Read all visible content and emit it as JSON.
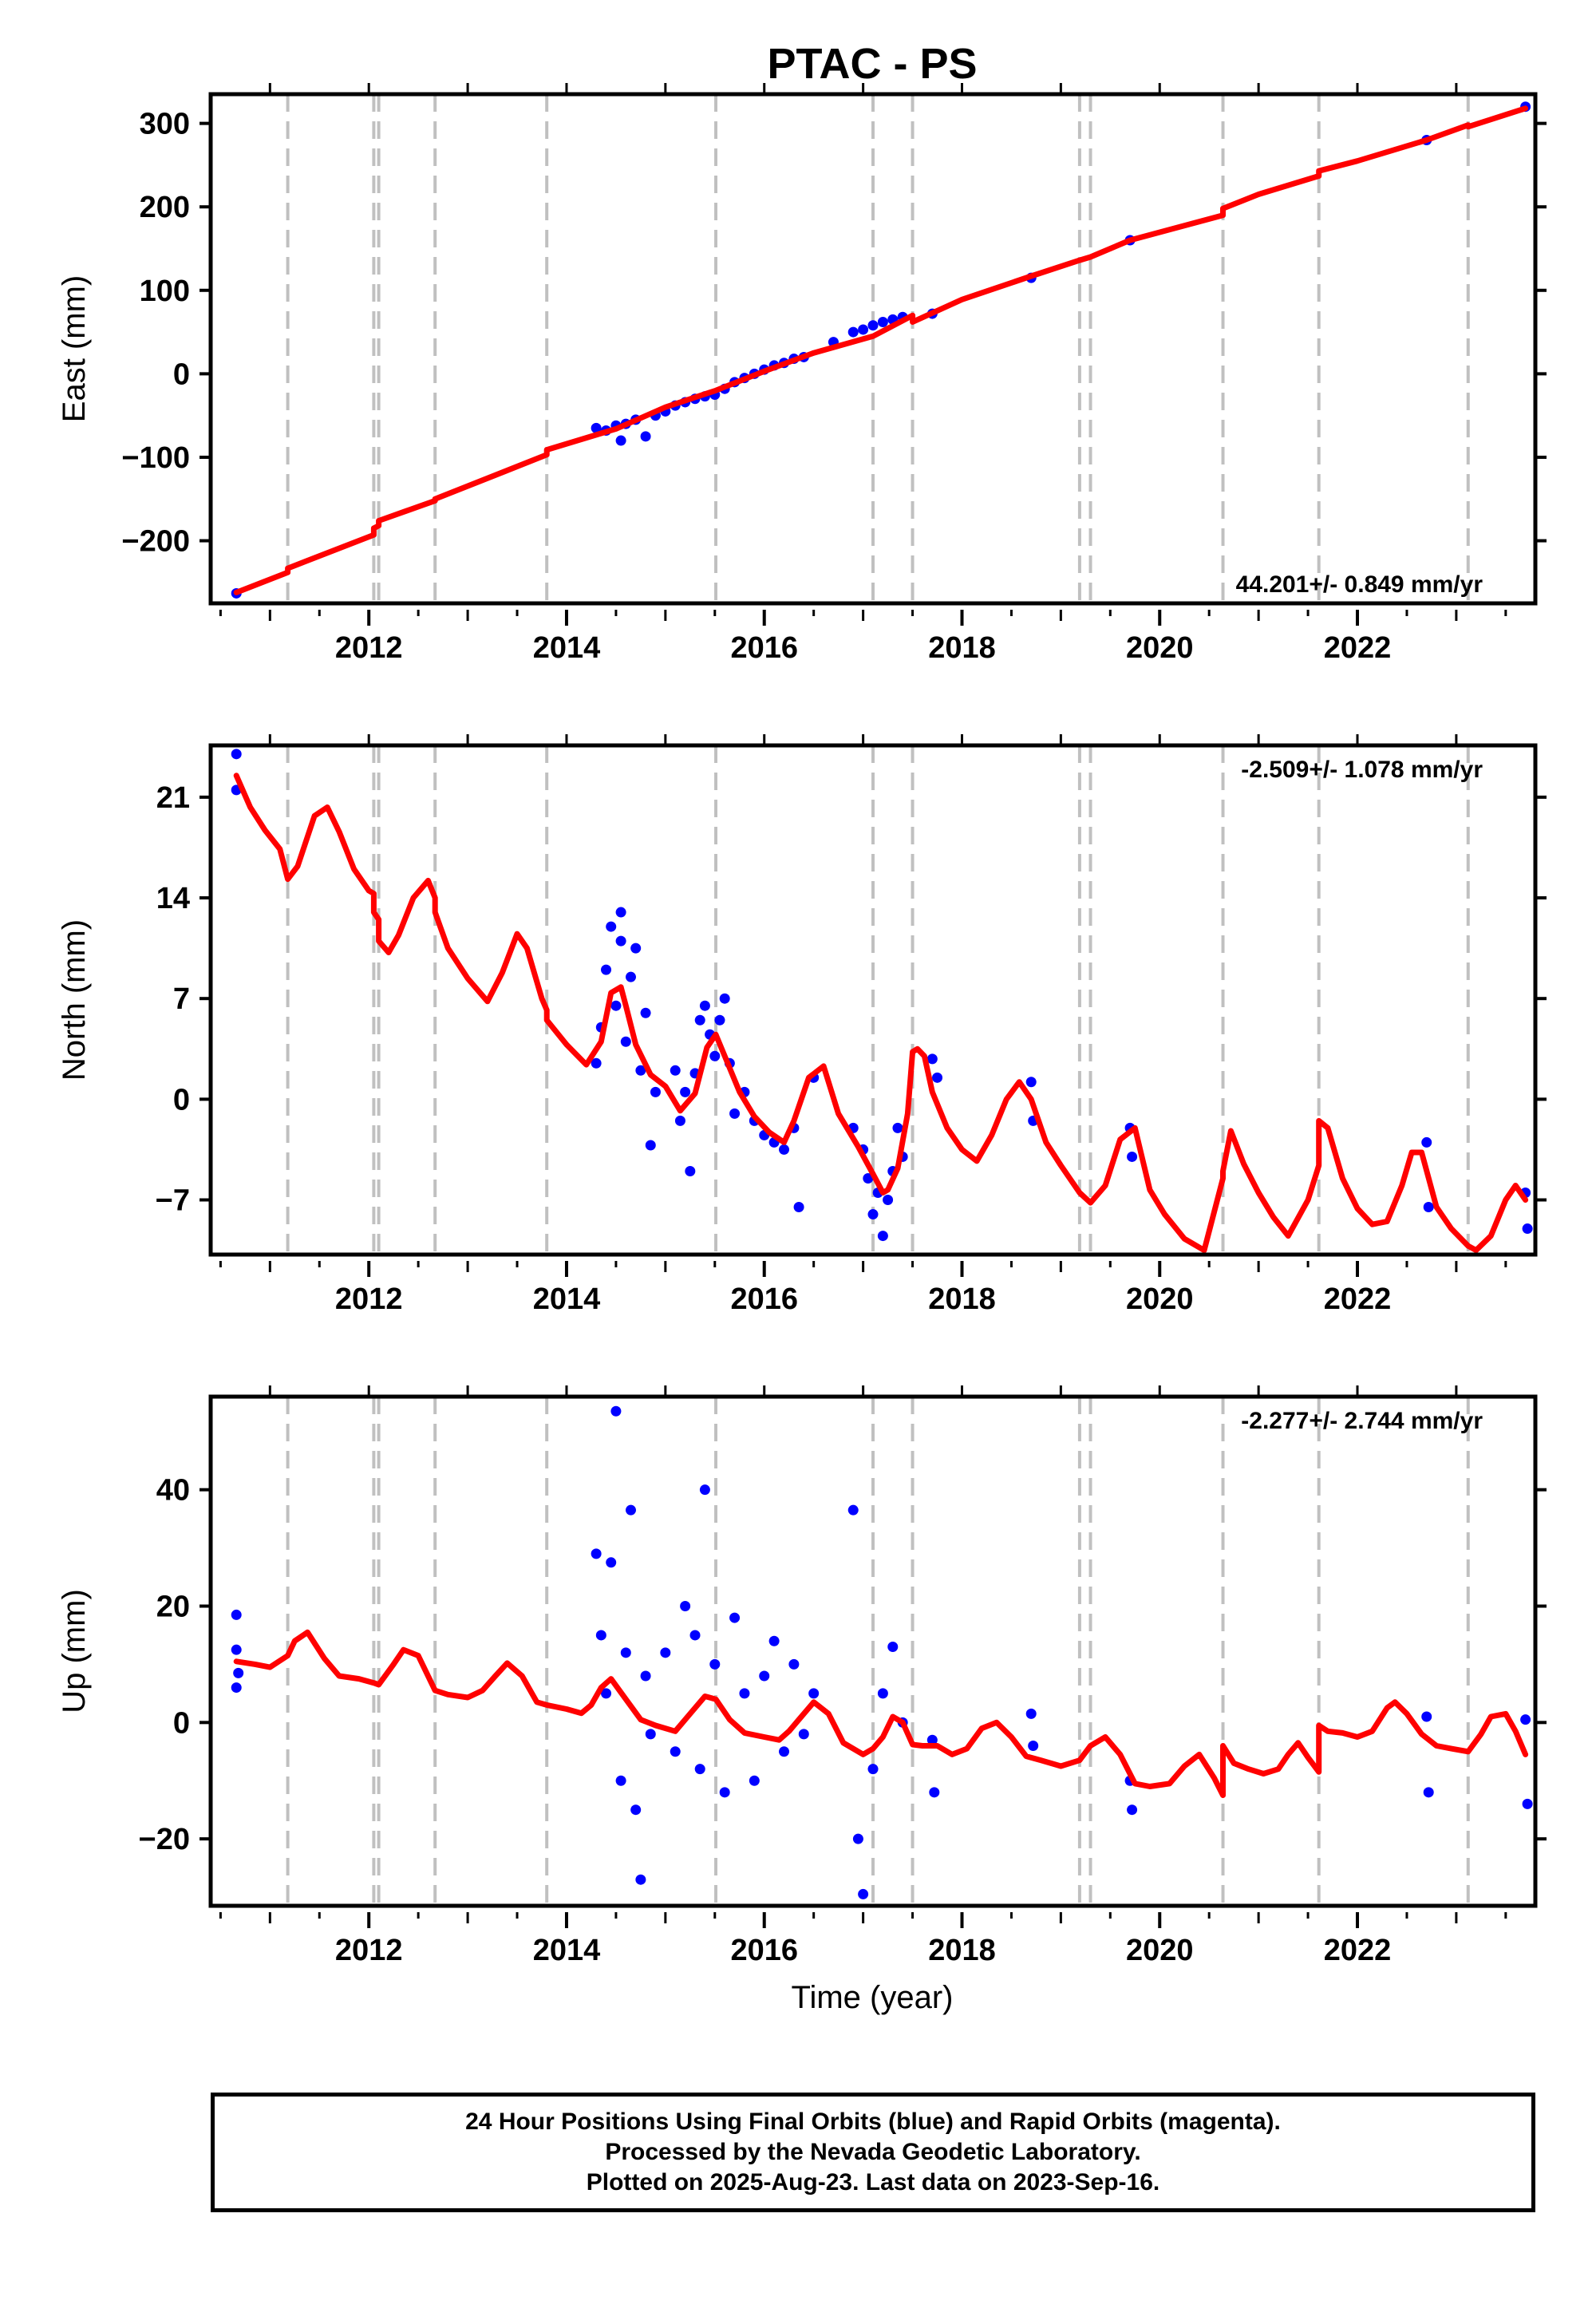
{
  "title": "PTAC - PS",
  "xlabel": "Time (year)",
  "footer": {
    "line1": "24 Hour Positions Using Final Orbits (blue) and Rapid Orbits (magenta).",
    "line2": "Processed by the Nevada Geodetic Laboratory.",
    "line3": "Plotted on 2025-Aug-23. Last data on 2023-Sep-16."
  },
  "colors": {
    "data_points": "#0000ff",
    "model_line": "#ff0000",
    "offset_lines": "#c0c0c0",
    "frame": "#000000"
  },
  "chart_data": [
    {
      "type": "scatter",
      "component": "east",
      "title": "PTAC - PS",
      "xlabel": "",
      "ylabel": "East (mm)",
      "rate": "44.201+/- 0.849 mm/yr",
      "xlim": [
        2010.4,
        2023.8
      ],
      "ylim": [
        -275,
        335
      ],
      "yticks": [
        -200,
        -100,
        0,
        100,
        200,
        300
      ],
      "xticks": [
        2012,
        2014,
        2016,
        2018,
        2020,
        2022
      ],
      "offsets": [
        2011.18,
        2012.05,
        2012.1,
        2012.67,
        2013.8,
        2015.51,
        2017.1,
        2017.5,
        2019.19,
        2019.3,
        2020.64,
        2021.61,
        2023.12
      ],
      "model": {
        "x": [
          2010.66,
          2011.18,
          2011.18,
          2012.05,
          2012.05,
          2012.1,
          2012.1,
          2012.67,
          2012.67,
          2013.8,
          2013.8,
          2014.5,
          2015.0,
          2015.51,
          2016.0,
          2016.5,
          2017.1,
          2017.5,
          2017.5,
          2018.0,
          2018.7,
          2019.19,
          2019.3,
          2019.7,
          2020.64,
          2020.64,
          2021.0,
          2021.61,
          2021.61,
          2022.0,
          2022.7,
          2023.12,
          2023.12,
          2023.7
        ],
        "y": [
          -262,
          -238,
          -233,
          -193,
          -185,
          -182,
          -176,
          -152,
          -150,
          -97,
          -91,
          -66,
          -40,
          -20,
          3,
          25,
          45,
          70,
          62,
          89,
          117,
          136,
          140,
          160,
          190,
          198,
          215,
          237,
          243,
          255,
          280,
          298,
          296,
          318
        ]
      },
      "points": {
        "x": [
          2010.66,
          2014.3,
          2014.4,
          2014.5,
          2014.55,
          2014.6,
          2014.7,
          2014.8,
          2014.9,
          2015.0,
          2015.1,
          2015.2,
          2015.3,
          2015.4,
          2015.5,
          2015.6,
          2015.7,
          2015.8,
          2015.9,
          2016.0,
          2016.1,
          2016.2,
          2016.3,
          2016.4,
          2016.7,
          2016.9,
          2017.0,
          2017.1,
          2017.2,
          2017.3,
          2017.4,
          2017.7,
          2018.7,
          2019.7,
          2022.7,
          2023.7
        ],
        "y": [
          -263,
          -65,
          -68,
          -62,
          -80,
          -60,
          -55,
          -75,
          -50,
          -45,
          -38,
          -34,
          -30,
          -27,
          -25,
          -18,
          -10,
          -5,
          0,
          5,
          10,
          13,
          18,
          20,
          38,
          50,
          53,
          58,
          62,
          65,
          68,
          72,
          115,
          160,
          280,
          320
        ]
      }
    },
    {
      "type": "scatter",
      "component": "north",
      "xlabel": "",
      "ylabel": "North (mm)",
      "rate": "-2.509+/- 1.078 mm/yr",
      "xlim": [
        2010.4,
        2023.8
      ],
      "ylim": [
        -10.8,
        24.6
      ],
      "yticks": [
        -7,
        0,
        7,
        14,
        21
      ],
      "xticks": [
        2012,
        2014,
        2016,
        2018,
        2020,
        2022
      ],
      "offsets": [
        2011.18,
        2012.05,
        2012.1,
        2012.67,
        2013.8,
        2015.51,
        2017.1,
        2017.5,
        2019.19,
        2019.3,
        2020.64,
        2021.61,
        2023.12
      ],
      "model": {
        "x": [
          2010.66,
          2010.8,
          2010.95,
          2011.1,
          2011.18,
          2011.28,
          2011.45,
          2011.58,
          2011.7,
          2011.85,
          2012.0,
          2012.05,
          2012.05,
          2012.1,
          2012.1,
          2012.2,
          2012.3,
          2012.45,
          2012.6,
          2012.67,
          2012.67,
          2012.8,
          2013.0,
          2013.2,
          2013.35,
          2013.5,
          2013.6,
          2013.75,
          2013.8,
          2013.8,
          2014.0,
          2014.2,
          2014.35,
          2014.45,
          2014.55,
          2014.6,
          2014.7,
          2014.85,
          2015.0,
          2015.15,
          2015.3,
          2015.42,
          2015.51,
          2015.6,
          2015.75,
          2015.9,
          2016.05,
          2016.2,
          2016.3,
          2016.45,
          2016.6,
          2016.75,
          2016.95,
          2017.1,
          2017.2,
          2017.25,
          2017.35,
          2017.45,
          2017.5,
          2017.55,
          2017.62,
          2017.7,
          2017.85,
          2018.0,
          2018.15,
          2018.3,
          2018.45,
          2018.58,
          2018.7,
          2018.85,
          2019.0,
          2019.19,
          2019.3,
          2019.45,
          2019.6,
          2019.75,
          2019.9,
          2020.05,
          2020.25,
          2020.45,
          2020.64,
          2020.64,
          2020.72,
          2020.85,
          2021.0,
          2021.15,
          2021.3,
          2021.5,
          2021.61,
          2021.61,
          2021.7,
          2021.85,
          2022.0,
          2022.15,
          2022.3,
          2022.45,
          2022.55,
          2022.65,
          2022.8,
          2022.95,
          2023.12,
          2023.2,
          2023.35,
          2023.5,
          2023.6,
          2023.7
        ],
        "y": [
          22.5,
          20.3,
          18.7,
          17.4,
          15.3,
          16.2,
          19.7,
          20.3,
          18.6,
          16.0,
          14.5,
          14.3,
          13.0,
          12.5,
          11.0,
          10.2,
          11.4,
          14.0,
          15.2,
          14.0,
          13.0,
          10.5,
          8.4,
          6.8,
          8.8,
          11.5,
          10.5,
          7.0,
          6.2,
          5.5,
          3.8,
          2.4,
          4.0,
          7.4,
          7.8,
          6.5,
          3.8,
          1.7,
          0.9,
          -0.8,
          0.4,
          3.6,
          4.5,
          3.0,
          0.5,
          -1.2,
          -2.3,
          -3.0,
          -1.5,
          1.5,
          2.3,
          -1.0,
          -3.3,
          -5.2,
          -6.5,
          -6.3,
          -4.8,
          -1.0,
          3.3,
          3.5,
          3.0,
          0.5,
          -2.0,
          -3.5,
          -4.3,
          -2.5,
          0.0,
          1.2,
          0.0,
          -3.0,
          -4.6,
          -6.5,
          -7.2,
          -6.0,
          -2.8,
          -2.0,
          -6.3,
          -8.0,
          -9.7,
          -10.5,
          -5.5,
          -5.0,
          -2.2,
          -4.5,
          -6.5,
          -8.2,
          -9.5,
          -7.0,
          -4.6,
          -1.5,
          -2.0,
          -5.5,
          -7.6,
          -8.7,
          -8.5,
          -6.0,
          -3.7,
          -3.7,
          -7.5,
          -9.0,
          -10.2,
          -10.5,
          -9.5,
          -7.0,
          -6.0,
          -7.0
        ]
      },
      "points": {
        "x": [
          2010.66,
          2010.66,
          2014.3,
          2014.35,
          2014.4,
          2014.45,
          2014.5,
          2014.55,
          2014.55,
          2014.6,
          2014.65,
          2014.7,
          2014.75,
          2014.8,
          2014.85,
          2014.9,
          2015.1,
          2015.15,
          2015.2,
          2015.25,
          2015.3,
          2015.35,
          2015.4,
          2015.45,
          2015.5,
          2015.55,
          2015.6,
          2015.65,
          2015.7,
          2015.8,
          2015.9,
          2016.0,
          2016.1,
          2016.2,
          2016.3,
          2016.35,
          2016.5,
          2016.9,
          2017.0,
          2017.05,
          2017.1,
          2017.15,
          2017.2,
          2017.25,
          2017.3,
          2017.35,
          2017.4,
          2017.7,
          2017.75,
          2018.7,
          2018.72,
          2019.7,
          2019.72,
          2022.7,
          2022.72,
          2023.7,
          2023.72
        ],
        "y": [
          24.0,
          21.5,
          2.5,
          5.0,
          9.0,
          12.0,
          6.5,
          13.0,
          11.0,
          4.0,
          8.5,
          10.5,
          2.0,
          6.0,
          -3.2,
          0.5,
          2.0,
          -1.5,
          0.5,
          -5.0,
          1.8,
          5.5,
          6.5,
          4.5,
          3.0,
          5.5,
          7.0,
          2.5,
          -1.0,
          0.5,
          -1.5,
          -2.5,
          -3.0,
          -3.5,
          -2.0,
          -7.5,
          1.5,
          -2.0,
          -3.5,
          -5.5,
          -8.0,
          -6.5,
          -9.5,
          -7.0,
          -5.0,
          -2.0,
          -4.0,
          2.8,
          1.5,
          1.2,
          -1.5,
          -2.0,
          -4.0,
          -3.0,
          -7.5,
          -6.5,
          -9.0
        ]
      }
    },
    {
      "type": "scatter",
      "component": "up",
      "xlabel": "Time (year)",
      "ylabel": "Up (mm)",
      "rate": "-2.277+/- 2.744 mm/yr",
      "xlim": [
        2010.4,
        2023.8
      ],
      "ylim": [
        -31.5,
        56
      ],
      "yticks": [
        -20,
        0,
        20,
        40
      ],
      "xticks": [
        2012,
        2014,
        2016,
        2018,
        2020,
        2022
      ],
      "offsets": [
        2011.18,
        2012.05,
        2012.1,
        2012.67,
        2013.8,
        2015.51,
        2017.1,
        2017.5,
        2019.19,
        2019.3,
        2020.64,
        2021.61,
        2023.12
      ],
      "model": {
        "x": [
          2010.66,
          2010.85,
          2011.0,
          2011.18,
          2011.25,
          2011.38,
          2011.55,
          2011.7,
          2011.9,
          2012.05,
          2012.1,
          2012.25,
          2012.35,
          2012.5,
          2012.67,
          2012.8,
          2013.0,
          2013.15,
          2013.28,
          2013.4,
          2013.55,
          2013.7,
          2013.8,
          2014.0,
          2014.15,
          2014.25,
          2014.35,
          2014.45,
          2014.6,
          2014.75,
          2014.9,
          2015.1,
          2015.25,
          2015.4,
          2015.51,
          2015.65,
          2015.8,
          2016.0,
          2016.15,
          2016.25,
          2016.35,
          2016.5,
          2016.65,
          2016.8,
          2017.0,
          2017.1,
          2017.2,
          2017.3,
          2017.4,
          2017.5,
          2017.6,
          2017.75,
          2017.9,
          2018.05,
          2018.2,
          2018.35,
          2018.5,
          2018.65,
          2018.8,
          2019.0,
          2019.19,
          2019.3,
          2019.45,
          2019.6,
          2019.75,
          2019.9,
          2020.1,
          2020.25,
          2020.4,
          2020.55,
          2020.64,
          2020.64,
          2020.75,
          2020.9,
          2021.05,
          2021.2,
          2021.3,
          2021.4,
          2021.5,
          2021.61,
          2021.61,
          2021.7,
          2021.85,
          2022.0,
          2022.15,
          2022.3,
          2022.38,
          2022.5,
          2022.65,
          2022.8,
          2022.95,
          2023.12,
          2023.25,
          2023.35,
          2023.5,
          2023.6,
          2023.7
        ],
        "y": [
          10.5,
          10.0,
          9.5,
          11.5,
          14.0,
          15.5,
          11.0,
          8.0,
          7.5,
          6.8,
          6.5,
          10.0,
          12.5,
          11.5,
          5.5,
          4.8,
          4.3,
          5.5,
          8.0,
          10.2,
          8.0,
          3.5,
          3.0,
          2.3,
          1.6,
          3.0,
          6.0,
          7.5,
          4.0,
          0.5,
          -0.5,
          -1.5,
          1.5,
          4.5,
          4.0,
          0.5,
          -1.8,
          -2.5,
          -3.0,
          -1.5,
          0.5,
          3.5,
          1.5,
          -3.5,
          -5.5,
          -4.5,
          -2.5,
          1.0,
          0.0,
          -3.8,
          -4.0,
          -4.0,
          -5.5,
          -4.5,
          -1.0,
          0.0,
          -2.5,
          -5.8,
          -6.5,
          -7.5,
          -6.5,
          -4.0,
          -2.5,
          -5.5,
          -10.5,
          -11.0,
          -10.5,
          -7.5,
          -5.5,
          -9.5,
          -12.5,
          -4.0,
          -7.0,
          -8.0,
          -8.8,
          -8.0,
          -5.5,
          -3.5,
          -6.0,
          -8.5,
          -0.5,
          -1.5,
          -1.8,
          -2.5,
          -1.5,
          2.5,
          3.5,
          1.5,
          -2.0,
          -4.0,
          -4.5,
          -5.0,
          -2.0,
          1.0,
          1.5,
          -1.5,
          -5.5
        ]
      },
      "points": {
        "x": [
          2010.66,
          2010.66,
          2010.66,
          2010.68,
          2014.3,
          2014.35,
          2014.4,
          2014.45,
          2014.5,
          2014.55,
          2014.6,
          2014.65,
          2014.7,
          2014.75,
          2014.8,
          2014.85,
          2015.0,
          2015.1,
          2015.2,
          2015.3,
          2015.35,
          2015.4,
          2015.5,
          2015.6,
          2015.7,
          2015.8,
          2015.9,
          2016.0,
          2016.1,
          2016.2,
          2016.3,
          2016.4,
          2016.5,
          2016.9,
          2016.95,
          2017.0,
          2017.1,
          2017.2,
          2017.3,
          2017.4,
          2017.7,
          2017.72,
          2018.7,
          2018.72,
          2019.7,
          2019.72,
          2022.7,
          2022.72,
          2023.7,
          2023.72
        ],
        "y": [
          18.5,
          12.5,
          6.0,
          8.5,
          29.0,
          15.0,
          5.0,
          27.5,
          53.5,
          -10.0,
          12.0,
          36.5,
          -15.0,
          -27.0,
          8.0,
          -2.0,
          12.0,
          -5.0,
          20.0,
          15.0,
          -8.0,
          40.0,
          10.0,
          -12.0,
          18.0,
          5.0,
          -10.0,
          8.0,
          14.0,
          -5.0,
          10.0,
          -2.0,
          5.0,
          36.5,
          -20.0,
          -29.5,
          -8.0,
          5.0,
          13.0,
          0.0,
          -3.0,
          -12.0,
          1.5,
          -4.0,
          -10.0,
          -15.0,
          1.0,
          -12.0,
          0.5,
          -14.0
        ]
      }
    }
  ]
}
